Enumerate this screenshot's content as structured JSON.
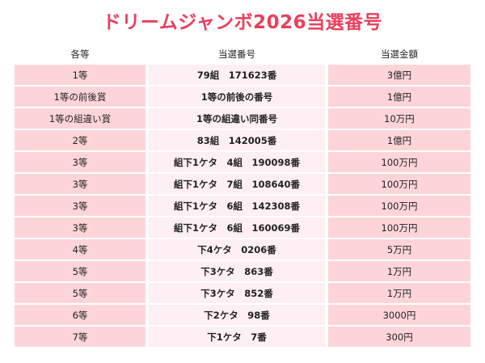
{
  "title": "ドリームジャンボ2026当選番号",
  "table": {
    "header": [
      "各等",
      "当選番号",
      "当選金額"
    ],
    "rows": [
      [
        "1等",
        "79組　171623番",
        "3億円"
      ],
      [
        "1等の前後賞",
        "1等の前後の番号",
        "1億円"
      ],
      [
        "1等の組違い賞",
        "1等の組違い同番号",
        "10万円"
      ],
      [
        "2等",
        "83組　142005番",
        "1億円"
      ],
      [
        "3等",
        "組下1ケタ　4組　190098番",
        "100万円"
      ],
      [
        "3等",
        "組下1ケタ　7組　108640番",
        "100万円"
      ],
      [
        "3等",
        "組下1ケタ　6組　142308番",
        "100万円"
      ],
      [
        "3等",
        "組下1ケタ　6組　160069番",
        "100万円"
      ],
      [
        "4等",
        "下4ケタ　0206番",
        "5万円"
      ],
      [
        "5等",
        "下3ケタ　863番",
        "1万円"
      ],
      [
        "5等",
        "下3ケタ　852番",
        "1万円"
      ],
      [
        "6等",
        "下2ケタ　98番",
        "3000円"
      ],
      [
        "7等",
        "下1ケタ　7番",
        "300円"
      ]
    ]
  }
}
